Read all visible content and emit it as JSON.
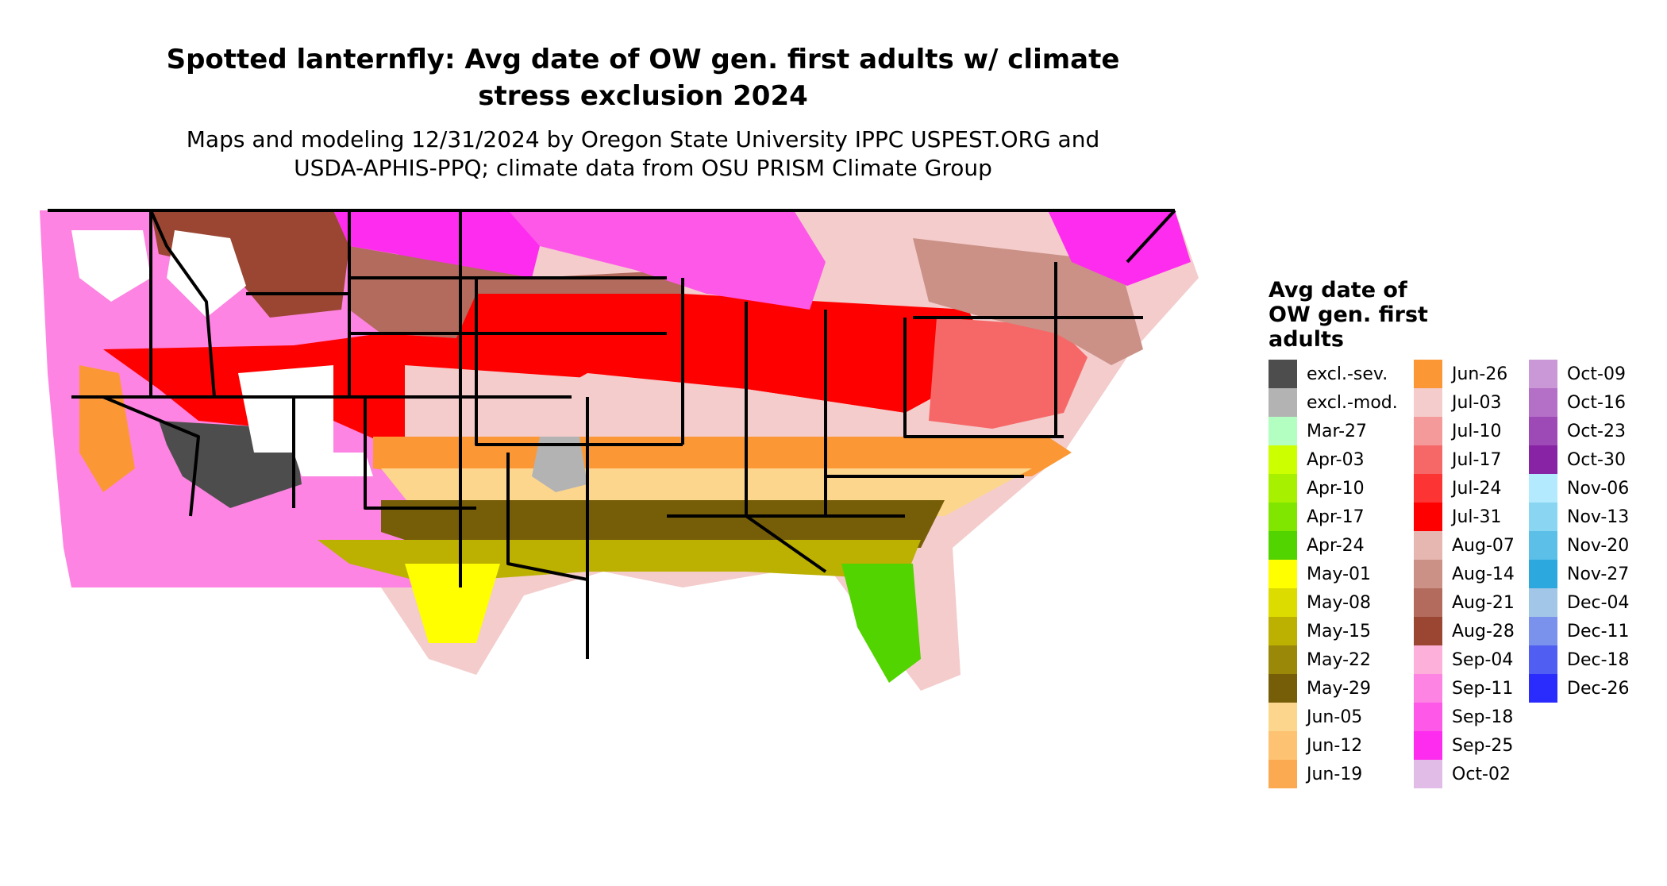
{
  "header": {
    "title_line1": "Spotted lanternfly: Avg date of OW gen. first adults w/ climate",
    "title_line2": "stress exclusion 2024",
    "subtitle_line1": "Maps and modeling 12/31/2024 by Oregon State University IPPC USPEST.ORG and",
    "subtitle_line2": "USDA-APHIS-PPQ; climate data from OSU PRISM Climate Group"
  },
  "legend": {
    "title_line1": "Avg date of",
    "title_line2": "OW gen. first",
    "title_line3": "adults",
    "columns": [
      [
        {
          "label": "excl.-sev.",
          "color": "#4d4d4d"
        },
        {
          "label": "excl.-mod.",
          "color": "#b3b3b3"
        },
        {
          "label": "Mar-27",
          "color": "#b3ffc2"
        },
        {
          "label": "Apr-03",
          "color": "#ccff00"
        },
        {
          "label": "Apr-10",
          "color": "#a6f000"
        },
        {
          "label": "Apr-17",
          "color": "#80e600"
        },
        {
          "label": "Apr-24",
          "color": "#52d400"
        },
        {
          "label": "May-01",
          "color": "#ffff00"
        },
        {
          "label": "May-08",
          "color": "#dcdc00"
        },
        {
          "label": "May-15",
          "color": "#bcb000"
        },
        {
          "label": "May-22",
          "color": "#9a8808"
        },
        {
          "label": "May-29",
          "color": "#765e08"
        },
        {
          "label": "Jun-05",
          "color": "#fdd68e"
        },
        {
          "label": "Jun-12",
          "color": "#fdc272"
        },
        {
          "label": "Jun-19",
          "color": "#fcaa52"
        }
      ],
      [
        {
          "label": "Jun-26",
          "color": "#fb9835"
        },
        {
          "label": "Jul-03",
          "color": "#f4cccc"
        },
        {
          "label": "Jul-10",
          "color": "#f49a9a"
        },
        {
          "label": "Jul-17",
          "color": "#f66868"
        },
        {
          "label": "Jul-24",
          "color": "#fc3434"
        },
        {
          "label": "Jul-31",
          "color": "#ff0000"
        },
        {
          "label": "Aug-07",
          "color": "#e6b7b0"
        },
        {
          "label": "Aug-14",
          "color": "#cb9186"
        },
        {
          "label": "Aug-21",
          "color": "#b26b5c"
        },
        {
          "label": "Aug-28",
          "color": "#9a4632"
        },
        {
          "label": "Sep-04",
          "color": "#fcb0da"
        },
        {
          "label": "Sep-11",
          "color": "#fd84e2"
        },
        {
          "label": "Sep-18",
          "color": "#fd58e8"
        },
        {
          "label": "Sep-25",
          "color": "#fe2cee"
        },
        {
          "label": "Oct-02",
          "color": "#e0bce6"
        }
      ],
      [
        {
          "label": "Oct-09",
          "color": "#ca98d6"
        },
        {
          "label": "Oct-16",
          "color": "#b46fc6"
        },
        {
          "label": "Oct-23",
          "color": "#9e4ab6"
        },
        {
          "label": "Oct-30",
          "color": "#8823a6"
        },
        {
          "label": "Nov-06",
          "color": "#b3eafd"
        },
        {
          "label": "Nov-13",
          "color": "#8ad6f2"
        },
        {
          "label": "Nov-20",
          "color": "#5cbfe8"
        },
        {
          "label": "Nov-27",
          "color": "#2ca8de"
        },
        {
          "label": "Dec-04",
          "color": "#a1c6e8"
        },
        {
          "label": "Dec-11",
          "color": "#7a92ec"
        },
        {
          "label": "Dec-18",
          "color": "#505ff2"
        },
        {
          "label": "Dec-26",
          "color": "#2a2cfe"
        }
      ]
    ]
  },
  "map": {
    "regions": [
      {
        "name": "pacific-northwest",
        "band": "Sep-11"
      },
      {
        "name": "northern-rockies",
        "band": "Aug-28"
      },
      {
        "name": "northern-plains",
        "band": "Sep-25"
      },
      {
        "name": "central-plains",
        "band": "Aug-21"
      },
      {
        "name": "great-basin",
        "band": "Jul-31"
      },
      {
        "name": "california-valley",
        "band": "Jun-26"
      },
      {
        "name": "desert-southwest",
        "band": "excl.-sev."
      },
      {
        "name": "midwest",
        "band": "Jul-31"
      },
      {
        "name": "mid-atlantic",
        "band": "Jul-17"
      },
      {
        "name": "lower-midwest",
        "band": "Jul-03"
      },
      {
        "name": "south-central",
        "band": "Jun-26"
      },
      {
        "name": "deep-south",
        "band": "Jun-05"
      },
      {
        "name": "gulf-coast",
        "band": "May-29"
      },
      {
        "name": "gulf-coast-south",
        "band": "May-15"
      },
      {
        "name": "south-texas",
        "band": "May-01"
      },
      {
        "name": "south-florida",
        "band": "Apr-24"
      },
      {
        "name": "upper-great-lakes",
        "band": "Sep-18"
      },
      {
        "name": "northeast",
        "band": "Aug-14"
      },
      {
        "name": "northern-new-england",
        "band": "Sep-25"
      },
      {
        "name": "west-texas",
        "band": "excl.-mod."
      }
    ]
  }
}
